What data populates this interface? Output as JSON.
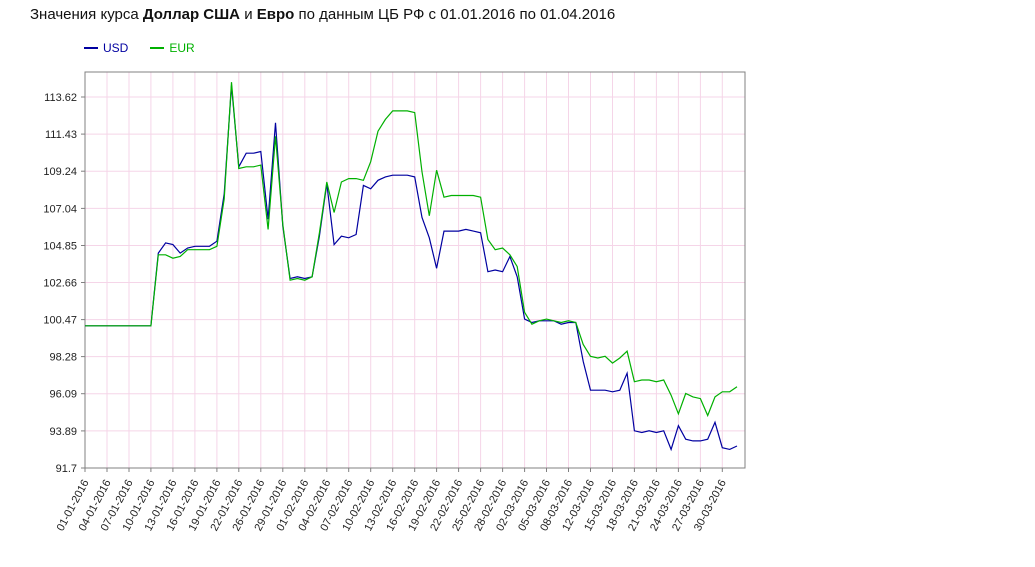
{
  "title": {
    "part1": "Значения курса ",
    "bold1": "Доллар США",
    "part2": " и ",
    "bold2": "Евро",
    "part3": " по данным ЦБ РФ с 01.01.2016 по 01.04.2016"
  },
  "legend": {
    "items": [
      {
        "label": "USD",
        "color": "#0000a0"
      },
      {
        "label": "EUR",
        "color": "#00b000"
      }
    ]
  },
  "chart_data": {
    "type": "line",
    "title": "Значения курса Доллар США и Евро по данным ЦБ РФ с 01.01.2016 по 01.04.2016",
    "legend_position": "top-left",
    "grid": true,
    "grid_color": "#f5d5e8",
    "axis_color": "#808080",
    "label_color": "#222222",
    "points_per_tick": 3,
    "x_tick_labels": [
      "01-01-2016",
      "04-01-2016",
      "07-01-2016",
      "10-01-2016",
      "13-01-2016",
      "16-01-2016",
      "19-01-2016",
      "22-01-2016",
      "26-01-2016",
      "29-01-2016",
      "01-02-2016",
      "04-02-2016",
      "07-02-2016",
      "10-02-2016",
      "13-02-2016",
      "16-02-2016",
      "19-02-2016",
      "22-02-2016",
      "25-02-2016",
      "28-02-2016",
      "02-03-2016",
      "05-03-2016",
      "08-03-2016",
      "12-03-2016",
      "15-03-2016",
      "18-03-2016",
      "21-03-2016",
      "24-03-2016",
      "27-03-2016",
      "30-03-2016"
    ],
    "y_tick_labels": [
      "113.62",
      "111.43",
      "109.24",
      "107.04",
      "104.85",
      "102.66",
      "100.47",
      "98.28",
      "96.09",
      "93.89",
      "91.7"
    ],
    "y_tick_values": [
      113.62,
      111.43,
      109.24,
      107.04,
      104.85,
      102.66,
      100.47,
      98.28,
      96.09,
      93.89,
      91.7
    ],
    "ylim": [
      91.7,
      115.1
    ],
    "series": [
      {
        "name": "USD",
        "color": "#0000a0",
        "values": [
          100.1,
          100.1,
          100.1,
          100.1,
          100.1,
          100.1,
          100.1,
          100.1,
          100.1,
          100.1,
          104.4,
          105.0,
          104.9,
          104.4,
          104.7,
          104.8,
          104.8,
          104.8,
          105.1,
          107.9,
          114.3,
          109.5,
          110.3,
          110.3,
          110.4,
          106.4,
          112.1,
          106.0,
          102.9,
          103.0,
          102.9,
          103.0,
          105.4,
          108.5,
          104.9,
          105.4,
          105.3,
          105.5,
          108.4,
          108.2,
          108.7,
          108.9,
          109.0,
          109.0,
          109.0,
          108.9,
          106.5,
          105.3,
          103.5,
          105.7,
          105.7,
          105.7,
          105.8,
          105.7,
          105.6,
          103.3,
          103.4,
          103.3,
          104.2,
          103.0,
          100.5,
          100.3,
          100.4,
          100.4,
          100.4,
          100.2,
          100.3,
          100.3,
          98.0,
          96.3,
          96.3,
          96.3,
          96.2,
          96.3,
          97.3,
          93.9,
          93.8,
          93.9,
          93.8,
          93.9,
          92.8,
          94.2,
          93.4,
          93.3,
          93.3,
          93.4,
          94.4,
          92.9,
          92.8,
          93.0
        ]
      },
      {
        "name": "EUR",
        "color": "#00b000",
        "values": [
          100.1,
          100.1,
          100.1,
          100.1,
          100.1,
          100.1,
          100.1,
          100.1,
          100.1,
          100.1,
          104.3,
          104.3,
          104.1,
          104.2,
          104.6,
          104.6,
          104.6,
          104.6,
          104.8,
          107.6,
          114.5,
          109.4,
          109.5,
          109.5,
          109.6,
          105.8,
          111.3,
          106.1,
          102.8,
          102.9,
          102.8,
          103.0,
          105.6,
          108.6,
          106.8,
          108.6,
          108.8,
          108.8,
          108.7,
          109.8,
          111.6,
          112.3,
          112.8,
          112.8,
          112.8,
          112.7,
          109.2,
          106.6,
          109.3,
          107.7,
          107.8,
          107.8,
          107.8,
          107.8,
          107.7,
          105.2,
          104.6,
          104.7,
          104.3,
          103.6,
          100.9,
          100.2,
          100.4,
          100.5,
          100.4,
          100.3,
          100.4,
          100.3,
          99.0,
          98.3,
          98.2,
          98.3,
          97.9,
          98.2,
          98.6,
          96.8,
          96.9,
          96.9,
          96.8,
          96.9,
          96.0,
          94.9,
          96.1,
          95.9,
          95.8,
          94.8,
          95.9,
          96.2,
          96.2,
          96.5
        ]
      }
    ]
  }
}
